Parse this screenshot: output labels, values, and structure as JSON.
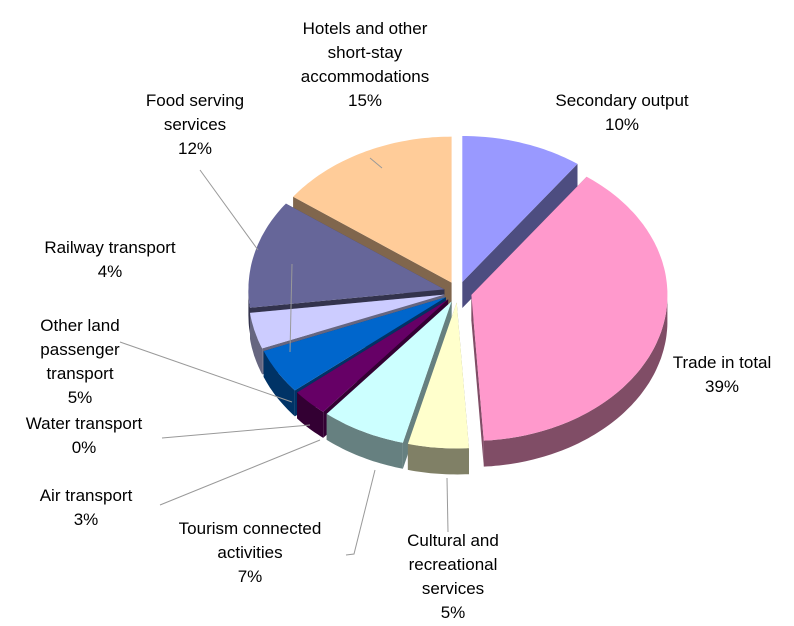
{
  "chart_data": {
    "type": "pie3d",
    "categories": [
      "Secondary output",
      "Trade in total",
      "Cultural and recreational services",
      "Tourism connected activities",
      "Air transport",
      "Water transport",
      "Other land passenger transport",
      "Railway transport",
      "Food serving services",
      "Hotels and other short-stay accommodations"
    ],
    "values": [
      10,
      39,
      5,
      7,
      3,
      0,
      5,
      4,
      12,
      15
    ],
    "value_labels": [
      "10%",
      "39%",
      "5%",
      "7%",
      "3%",
      "0%",
      "5%",
      "4%",
      "12%",
      "15%"
    ],
    "colors": [
      "#9999ff",
      "#ff99cc",
      "#ffffcc",
      "#ccffff",
      "#660066",
      "#ff8080",
      "#0066cc",
      "#ccccff",
      "#666699",
      "#ffcc99"
    ]
  }
}
